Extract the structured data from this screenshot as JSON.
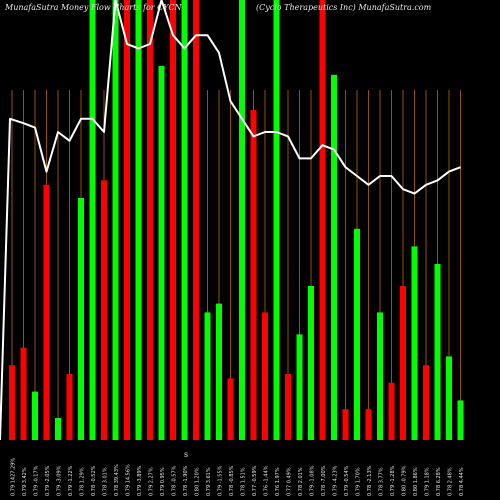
{
  "header": {
    "left": "MunafaSutra  Money Flow  Charts for CYCN",
    "right": "(Cyclo  Therapeutics Inc) MunafaSutra.com"
  },
  "colors": {
    "background": "#000000",
    "up": "#00ff00",
    "down": "#ff0000",
    "line": "#ffffff",
    "grid": "#b8660a",
    "text": "#e8e8e8"
  },
  "chart_data": {
    "type": "bar",
    "title": "",
    "grid": "vertical",
    "legend": "none",
    "ylim": [
      0,
      100
    ],
    "categories": [
      "0.79 1427.29%",
      "0.79 3.42%",
      "0.79 -0.17%",
      "0.79 -2.05%",
      "0.79 -3.09%",
      "0.79 -1.22%",
      "0.78 1.29%",
      "0.78 -0.52%",
      "0.78 3.01%",
      "0.78 39.43%",
      "0.79 14.56%",
      "0.79 -3.89%",
      "0.79 2.27%",
      "0.79 0.95%",
      "0.78 -0.57%",
      "0.78 -1.90%",
      "0.80 1.20%",
      "0.79 3.61%",
      "0.79 -1.55%",
      "0.78 -0.85%",
      "0.78 1.51%",
      "0.77 -0.59%",
      "0.76 -1.44%",
      "0.76 1.97%",
      "0.77 0.49%",
      "0.78 2.01%",
      "0.79 -1.08%",
      "0.78 -7.00%",
      "0.79 -4.23%",
      "0.79 -0.54%",
      "0.79 1.70%",
      "0.78 -2.13%",
      "0.78 3.77%",
      "0.79 -1.28%",
      "0.80 -0.79%",
      "0.80 1.86%",
      "0.79 1.18%",
      "0.78 6.28%",
      "0.78 2.48%",
      "0.78 4.44%"
    ],
    "bar_colors": [
      "down",
      "down",
      "up",
      "down",
      "up",
      "down",
      "up",
      "up",
      "down",
      "up",
      "down",
      "up",
      "down",
      "up",
      "down",
      "up",
      "down",
      "up",
      "up",
      "down",
      "up",
      "down",
      "down",
      "up",
      "down",
      "up",
      "up",
      "down",
      "up",
      "down",
      "up",
      "down",
      "up",
      "down",
      "down",
      "up",
      "down",
      "up",
      "up",
      "up"
    ],
    "values": [
      17,
      21,
      11,
      58,
      5,
      15,
      55,
      100,
      59,
      100,
      100,
      100,
      100,
      85,
      100,
      100,
      100,
      29,
      31,
      14,
      100,
      75,
      29,
      100,
      15,
      24,
      35,
      100,
      83,
      7,
      48,
      7,
      29,
      13,
      35,
      44,
      17,
      40,
      19,
      9
    ],
    "line": {
      "name": "",
      "values": [
        73,
        72,
        71,
        61,
        70,
        68,
        73,
        73,
        70,
        100,
        90,
        89,
        90,
        100,
        92,
        89,
        92,
        92,
        88,
        77,
        73,
        69,
        70,
        70,
        69,
        64,
        64,
        67,
        66,
        62,
        60,
        58,
        60,
        60,
        57,
        56,
        58,
        59,
        61,
        62
      ]
    },
    "xaxis_mark": "s"
  }
}
